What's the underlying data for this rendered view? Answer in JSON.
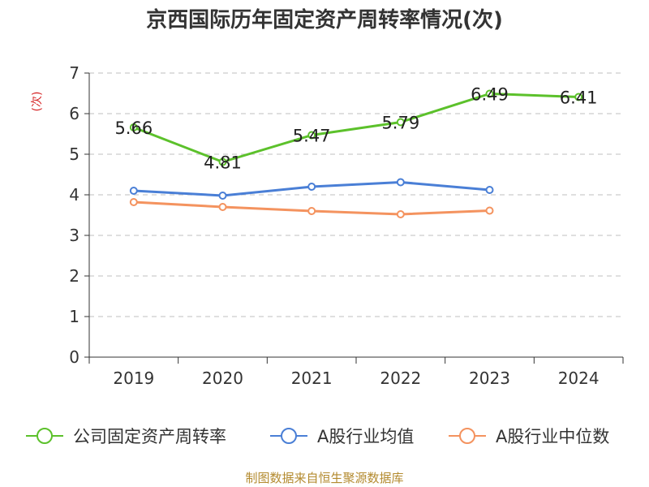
{
  "chart_data": {
    "type": "line",
    "title": "京西国际历年固定资产周转率情况(次)",
    "ylabel": "(次)",
    "categories": [
      "2019",
      "2020",
      "2021",
      "2022",
      "2023",
      "2024"
    ],
    "ylim": [
      0,
      7
    ],
    "yticks": [
      0,
      1,
      2,
      3,
      4,
      5,
      6,
      7
    ],
    "grid": true,
    "legend_position": "bottom",
    "series": [
      {
        "name": "公司固定资产周转率",
        "color": "#5cc12b",
        "values": [
          5.66,
          4.81,
          5.47,
          5.79,
          6.49,
          6.41
        ],
        "labels": [
          "5.66",
          "4.81",
          "5.47",
          "5.79",
          "6.49",
          "6.41"
        ]
      },
      {
        "name": "A股行业均值",
        "color": "#4a7fd6",
        "values": [
          4.1,
          3.98,
          4.2,
          4.31,
          4.12,
          null
        ]
      },
      {
        "name": "A股行业中位数",
        "color": "#f4935f",
        "values": [
          3.82,
          3.7,
          3.6,
          3.52,
          3.61,
          null
        ]
      }
    ]
  },
  "footer": {
    "source": "制图数据来自恒生聚源数据库"
  }
}
